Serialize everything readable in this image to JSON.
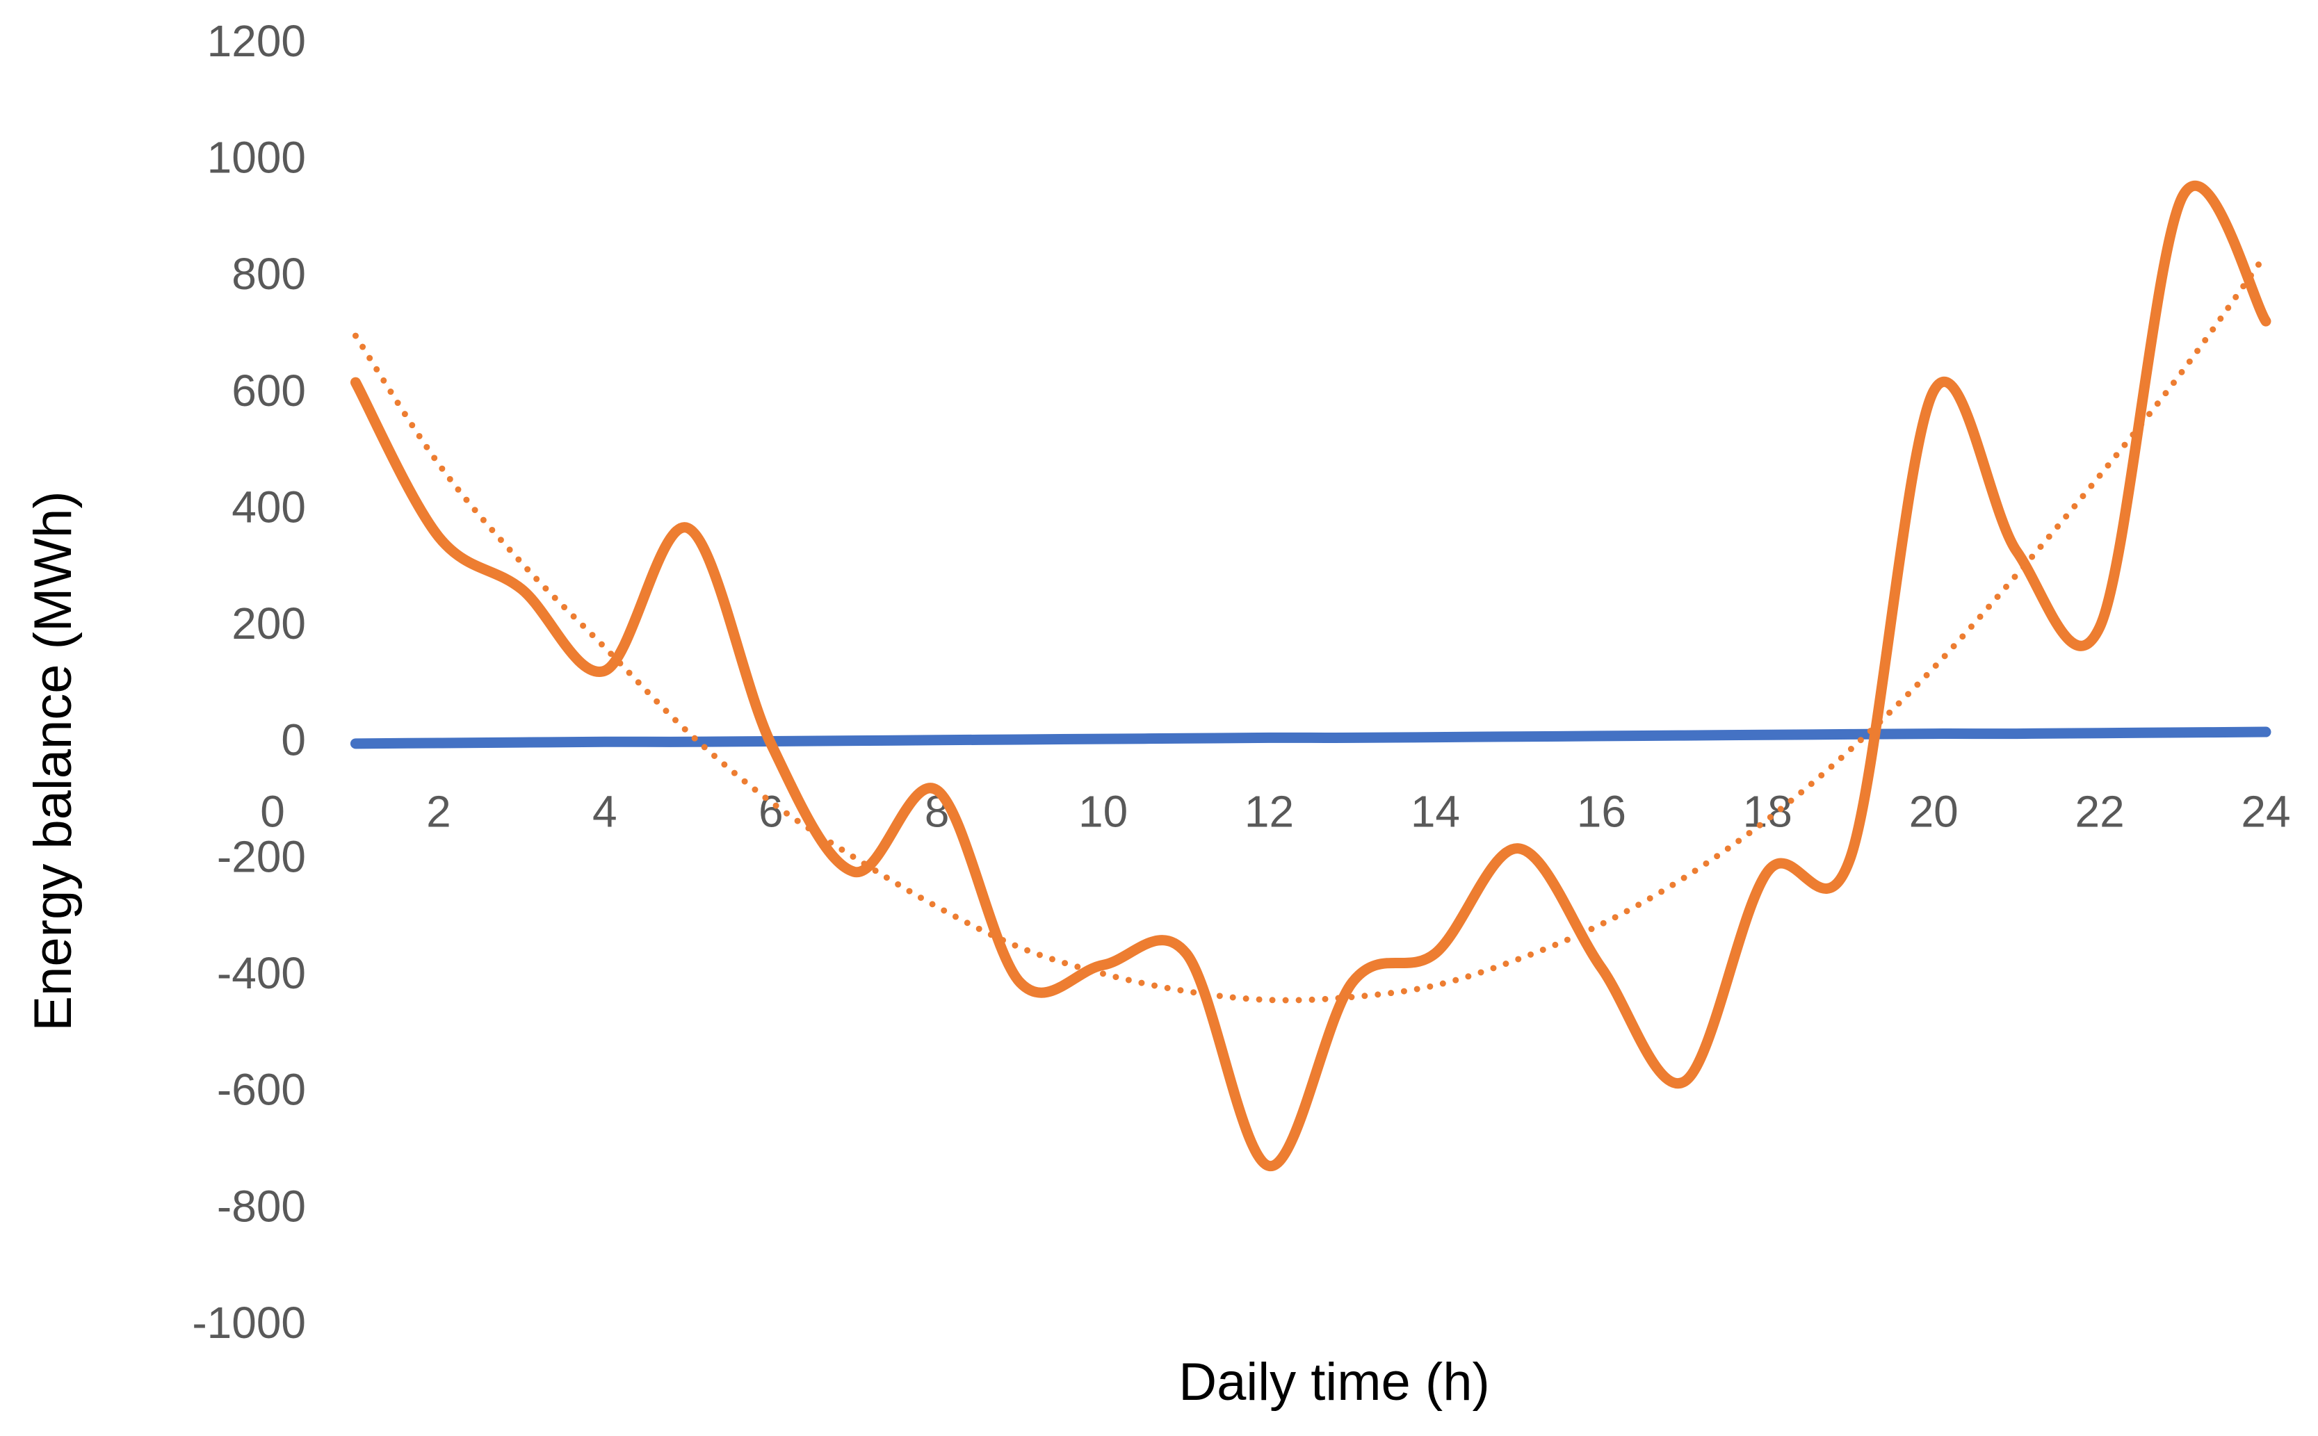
{
  "chart_data": {
    "type": "line",
    "x_label": "Daily time (h)",
    "y_label": "Energy balance (MWh)",
    "x": [
      1,
      2,
      3,
      4,
      5,
      6,
      7,
      8,
      9,
      10,
      11,
      12,
      13,
      14,
      15,
      16,
      17,
      18,
      19,
      20,
      21,
      22,
      23,
      24
    ],
    "series": [
      {
        "color": "#4472c4",
        "style": "solid",
        "values": [
          0,
          1,
          2,
          3,
          3,
          4,
          5,
          6,
          7,
          8,
          9,
          10,
          10,
          11,
          12,
          13,
          14,
          15,
          16,
          17,
          17,
          18,
          19,
          20
        ]
      },
      {
        "color": "#ed7d31",
        "style": "solid",
        "values": [
          620,
          355,
          265,
          125,
          370,
          0,
          -220,
          -80,
          -410,
          -380,
          -360,
          -725,
          -410,
          -360,
          -180,
          -385,
          -580,
          -220,
          -195,
          605,
          330,
          200,
          940,
          725
        ]
      },
      {
        "color": "#ed7d31",
        "style": "dotted",
        "values": [
          700,
          480,
          310,
          165,
          20,
          -100,
          -195,
          -280,
          -350,
          -395,
          -425,
          -440,
          -435,
          -415,
          -370,
          -310,
          -230,
          -130,
          -10,
          130,
          290,
          460,
          640,
          840
        ]
      }
    ],
    "smooth": true,
    "xlim": [
      0,
      24
    ],
    "xticks": [
      0,
      2,
      4,
      6,
      8,
      10,
      12,
      14,
      16,
      18,
      20,
      22,
      24
    ],
    "ylim": [
      -1000,
      1200
    ],
    "yticks": [
      -1000,
      -800,
      -600,
      -400,
      -200,
      0,
      200,
      400,
      600,
      800,
      1000,
      1200
    ],
    "grid": false
  }
}
